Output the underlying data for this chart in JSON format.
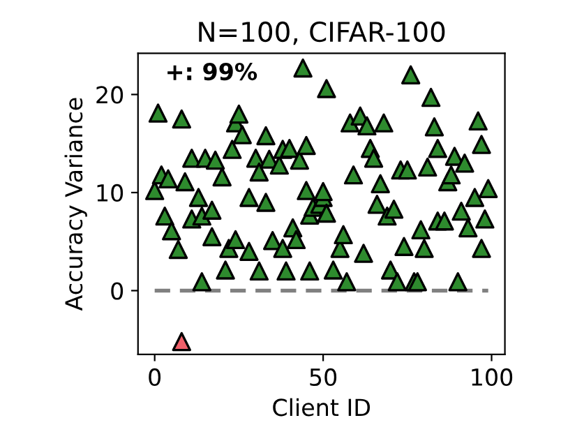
{
  "chart_data": {
    "type": "scatter",
    "title": "N=100, CIFAR-100",
    "xlabel": "Client ID",
    "ylabel": "Accuracy Variance",
    "marker": "triangle",
    "grid": false,
    "legend": false,
    "xlim": [
      -4.95,
      103.95
    ],
    "ylim": [
      -6.5,
      24.2
    ],
    "xticks": [
      0,
      50,
      100
    ],
    "yticks": [
      0,
      10,
      20
    ],
    "annotations": [
      "+: 99%"
    ],
    "ref_lines": [
      {
        "axis": "y",
        "value": 0,
        "color": "#808080",
        "line_style": "dashed"
      }
    ],
    "series": [
      {
        "color": "#2e8b2e",
        "x": [
          1,
          8,
          0,
          2,
          4,
          3,
          5,
          7,
          9,
          11,
          11,
          13,
          14,
          15,
          14,
          17,
          17,
          18,
          20,
          21,
          22,
          23,
          24,
          24,
          25,
          26,
          28,
          28,
          30,
          31,
          31,
          33,
          33,
          34,
          35,
          37,
          38,
          38,
          39,
          40,
          41,
          42,
          43,
          44,
          45,
          46,
          45,
          46,
          47,
          49,
          50,
          51,
          50,
          51,
          53,
          55,
          56,
          57,
          59,
          58,
          61,
          62,
          63,
          64,
          65,
          66,
          67,
          68,
          69,
          71,
          70,
          72,
          74,
          73,
          75,
          76,
          77,
          78,
          79,
          80,
          81,
          82,
          83,
          84,
          84,
          86,
          87,
          88,
          89,
          90,
          91,
          92,
          93,
          95,
          96,
          97,
          97,
          98,
          99
        ],
        "values": [
          18.1,
          17.5,
          10.2,
          11.8,
          11.4,
          7.6,
          6.1,
          4.2,
          11.1,
          7.3,
          13.5,
          9.5,
          7.6,
          13.5,
          0.9,
          5.5,
          8.2,
          13.3,
          11.6,
          2.1,
          4.3,
          14.4,
          5.2,
          17.1,
          18.0,
          15.9,
          4.0,
          9.5,
          13.5,
          12.1,
          2.0,
          9.0,
          15.8,
          13.4,
          5.1,
          12.8,
          14.4,
          4.3,
          2.0,
          14.5,
          6.4,
          5.2,
          13.3,
          22.7,
          14.8,
          2.0,
          10.2,
          7.7,
          8.5,
          8.8,
          9.5,
          20.6,
          10.1,
          7.9,
          2.1,
          4.3,
          5.7,
          0.9,
          11.8,
          17.1,
          17.8,
          3.8,
          16.8,
          14.5,
          13.5,
          8.8,
          10.9,
          17.1,
          7.6,
          8.3,
          2.1,
          0.9,
          4.5,
          12.3,
          12.3,
          22.0,
          0.9,
          0.9,
          6.2,
          4.3,
          12.6,
          19.7,
          16.7,
          14.5,
          7.1,
          7.1,
          11.1,
          11.8,
          13.7,
          0.9,
          8.1,
          13.0,
          6.4,
          9.5,
          17.3,
          14.9,
          4.3,
          7.3,
          10.4
        ]
      },
      {
        "color": "#f0606a",
        "x": [
          8
        ],
        "values": [
          -5.2
        ]
      }
    ]
  }
}
